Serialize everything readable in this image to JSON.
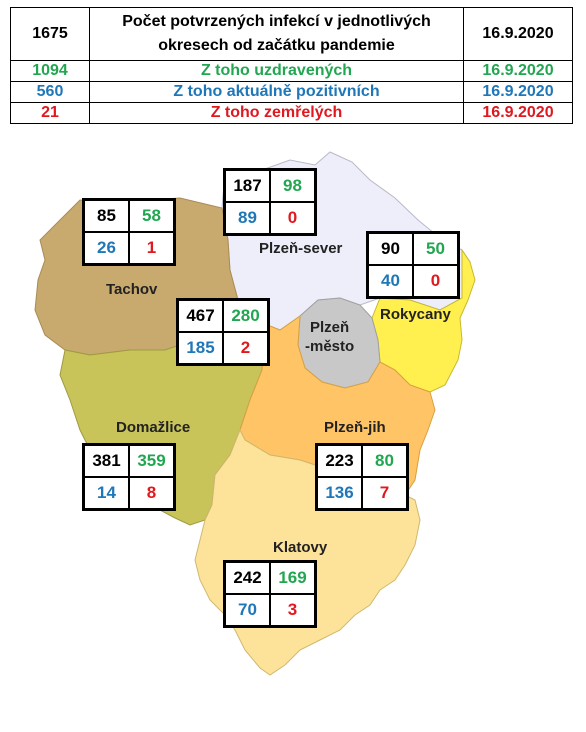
{
  "header": {
    "row1": {
      "total": "1675",
      "title_line1": "Počet potvrzených infekcí v jednotlivých",
      "title_line2": "okresech od začátku pandemie",
      "date": "16.9.2020"
    },
    "row2": {
      "value": "1094",
      "label": "Z toho uzdravených",
      "date": "16.9.2020"
    },
    "row3": {
      "value": "560",
      "label": "Z toho aktuálně pozitivních",
      "date": "16.9.2020"
    },
    "row4": {
      "value": "21",
      "label": "Z toho zemřelých",
      "date": "16.9.2020"
    }
  },
  "colors": {
    "recovered": "#22a651",
    "active": "#1f77b8",
    "deaths": "#e0181f",
    "tachov": "#c8a96e",
    "plzen_sever": "#eeeefa",
    "rokycany": "#fff050",
    "plzen_mesto": "#c8c8c8",
    "domazlice": "#c8c45a",
    "plzen_jih": "#ffc466",
    "klatovy": "#fde39a"
  },
  "districts": {
    "tachov": {
      "name": "Tachov",
      "total": "85",
      "recovered": "58",
      "active": "26",
      "deaths": "1"
    },
    "plzen_sever": {
      "name": "Plzeň-sever",
      "total": "187",
      "recovered": "98",
      "active": "89",
      "deaths": "0"
    },
    "rokycany": {
      "name": "Rokycany",
      "total": "90",
      "recovered": "50",
      "active": "40",
      "deaths": "0"
    },
    "plzen_mesto": {
      "name_line1": "Plzeň",
      "name_line2": "-město",
      "total": "467",
      "recovered": "280",
      "active": "185",
      "deaths": "2"
    },
    "domazlice": {
      "name": "Domažlice",
      "total": "381",
      "recovered": "359",
      "active": "14",
      "deaths": "8"
    },
    "plzen_jih": {
      "name": "Plzeň-jih",
      "total": "223",
      "recovered": "80",
      "active": "136",
      "deaths": "7"
    },
    "klatovy": {
      "name": "Klatovy",
      "total": "242",
      "recovered": "169",
      "active": "70",
      "deaths": "3"
    }
  }
}
